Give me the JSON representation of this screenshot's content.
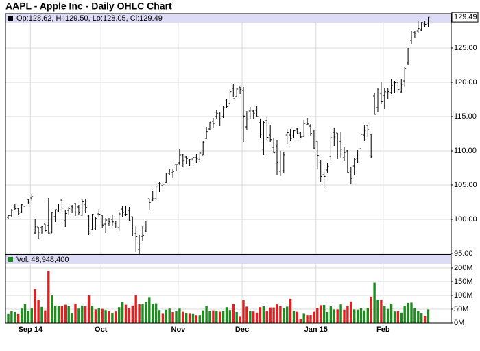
{
  "chart_data": {
    "type": "ohlc",
    "title": "AAPL - Apple Inc - Daily OHLC Chart",
    "legend_text": "Op:128.62, Hi:129.50, Lo:128.05, Cl:129.49",
    "volume_legend": "Vol: 48,948,400",
    "categories": [
      null,
      null,
      null,
      null,
      null,
      null,
      null,
      "Sep 14",
      null,
      null,
      null,
      null,
      null,
      null,
      null,
      null,
      null,
      null,
      null,
      null,
      null,
      null,
      null,
      null,
      null,
      null,
      null,
      null,
      "Oct",
      null,
      null,
      null,
      null,
      null,
      null,
      null,
      null,
      null,
      null,
      null,
      null,
      null,
      null,
      null,
      null,
      null,
      null,
      null,
      null,
      null,
      null,
      "Nov",
      null,
      null,
      null,
      null,
      null,
      null,
      null,
      null,
      null,
      null,
      null,
      null,
      null,
      null,
      null,
      null,
      null,
      null,
      "Dec",
      null,
      null,
      null,
      null,
      null,
      null,
      null,
      null,
      null,
      null,
      null,
      null,
      null,
      null,
      null,
      null,
      null,
      null,
      null,
      null,
      null,
      "Jan 15",
      null,
      null,
      null,
      null,
      null,
      null,
      null,
      null,
      null,
      null,
      null,
      null,
      null,
      null,
      null,
      null,
      null,
      null,
      null,
      "Feb",
      null,
      null,
      null,
      null,
      null,
      null,
      null,
      null,
      null,
      null,
      null,
      null,
      null
    ],
    "open": [
      100.3,
      100.6,
      101.8,
      101.6,
      101.0,
      101.9,
      102.9,
      103.1,
      98.0,
      98.9,
      98.8,
      99.3,
      99.1,
      98.0,
      100.4,
      101.2,
      102.8,
      99.8,
      101.3,
      101.9,
      102.3,
      101.8,
      100.6,
      102.2,
      100.5,
      98.5,
      98.7,
      100.8,
      100.6,
      99.3,
      99.4,
      100.0,
      99.4,
      98.8,
      101.5,
      100.7,
      101.3,
      100.4,
      97.9,
      95.6,
      97.5,
      98.3,
      103.0,
      102.8,
      103.0,
      105.2,
      104.9,
      105.4,
      106.7,
      106.8,
      108.0,
      108.2,
      109.4,
      109.1,
      108.6,
      108.8,
      109.0,
      108.7,
      109.4,
      111.8,
      113.2,
      114.3,
      115.0,
      115.4,
      115.0,
      117.3,
      116.9,
      119.1,
      117.9,
      119.3,
      118.8,
      113.5,
      115.8,
      115.8,
      115.9,
      114.1,
      110.2,
      114.4,
      112.3,
      110.5,
      110.7,
      107.0,
      107.1,
      112.3,
      112.3,
      112.2,
      113.2,
      112.6,
      112.1,
      113.8,
      113.6,
      112.8,
      111.4,
      108.3,
      106.5,
      107.2,
      109.2,
      112.7,
      112.6,
      111.4,
      109.0,
      110.0,
      107.0,
      107.8,
      108.9,
      110.3,
      112.3,
      113.7,
      112.4,
      118.0,
      116.3,
      118.4,
      118.1,
      118.5,
      118.5,
      120.0,
      120.0,
      118.6,
      120.2,
      122.8,
      126.1,
      127.3,
      127.5,
      127.6,
      128.5,
      128.62
    ],
    "high": [
      100.7,
      101.5,
      102.2,
      101.7,
      102.2,
      102.8,
      102.9,
      103.7,
      100.1,
      98.9,
      99.0,
      99.3,
      103.1,
      101.1,
      101.4,
      102.2,
      103.0,
      101.3,
      101.8,
      102.1,
      102.4,
      102.1,
      102.9,
      102.9,
      100.7,
      100.8,
      100.4,
      101.5,
      100.7,
      100.2,
      100.2,
      100.6,
      99.7,
      101.1,
      102.0,
      102.0,
      101.8,
      100.4,
      99.0,
      97.7,
      99.0,
      99.8,
      103.0,
      104.1,
      105.0,
      105.5,
      105.5,
      106.7,
      107.4,
      107.3,
      108.0,
      110.3,
      109.5,
      109.3,
      108.8,
      109.3,
      109.5,
      109.8,
      111.4,
      113.5,
      114.2,
      114.8,
      116.0,
      115.7,
      116.6,
      117.6,
      118.8,
      119.8,
      119.1,
      119.3,
      119.3,
      115.8,
      116.4,
      116.0,
      116.5,
      114.6,
      114.3,
      114.9,
      113.8,
      111.9,
      111.6,
      110.0,
      109.8,
      113.2,
      113.2,
      113.0,
      113.3,
      112.7,
      114.5,
      114.8,
      113.9,
      113.1,
      111.4,
      108.7,
      107.4,
      108.2,
      112.2,
      113.3,
      112.6,
      112.8,
      110.5,
      110.1,
      107.6,
      108.9,
      110.1,
      112.5,
      113.8,
      113.8,
      112.5,
      118.4,
      119.2,
      120.0,
      119.2,
      119.1,
      120.5,
      120.2,
      120.3,
      120.5,
      122.2,
      125.0,
      127.5,
      127.5,
      128.9,
      128.8,
      129.0,
      129.5
    ],
    "low": [
      100.0,
      100.3,
      101.3,
      100.7,
      100.9,
      101.8,
      102.2,
      102.7,
      97.8,
      97.2,
      97.8,
      98.1,
      97.8,
      98.0,
      99.6,
      101.1,
      101.2,
      98.9,
      100.6,
      101.0,
      100.5,
      100.6,
      100.5,
      101.0,
      97.7,
      98.4,
      98.5,
      100.4,
      98.7,
      98.0,
      99.1,
      99.1,
      98.7,
      98.3,
      100.3,
      100.5,
      99.8,
      97.6,
      95.2,
      95.0,
      96.8,
      98.2,
      101.3,
      102.7,
      102.8,
      104.0,
      104.7,
      105.3,
      106.4,
      106.0,
      107.1,
      108.0,
      107.7,
      108.1,
      107.8,
      107.9,
      108.2,
      108.4,
      109.4,
      111.7,
      113.1,
      113.3,
      114.7,
      113.6,
      114.8,
      116.3,
      116.6,
      117.8,
      117.8,
      118.3,
      111.3,
      113.0,
      114.6,
      114.6,
      114.9,
      111.9,
      109.4,
      111.6,
      111.3,
      109.7,
      106.4,
      106.3,
      106.8,
      111.0,
      111.5,
      111.9,
      112.5,
      111.9,
      112.0,
      113.7,
      112.1,
      110.2,
      107.4,
      105.4,
      104.6,
      106.7,
      108.7,
      110.7,
      108.8,
      108.9,
      108.5,
      106.7,
      105.2,
      106.5,
      108.2,
      109.7,
      111.4,
      112.0,
      109.0,
      115.3,
      115.6,
      116.9,
      116.1,
      117.6,
      118.3,
      118.5,
      118.5,
      118.5,
      119.3,
      122.5,
      125.6,
      126.4,
      127.2,
      127.5,
      128.0,
      128.05
    ],
    "close": [
      100.58,
      101.32,
      101.54,
      100.89,
      102.13,
      102.25,
      102.5,
      103.3,
      98.94,
      98.12,
      98.97,
      98.36,
      97.99,
      101.0,
      101.43,
      101.66,
      101.63,
      100.86,
      101.58,
      101.79,
      100.96,
      101.06,
      102.64,
      101.75,
      97.87,
      100.75,
      100.11,
      100.75,
      99.18,
      99.9,
      99.62,
      99.62,
      98.75,
      100.8,
      101.02,
      100.73,
      99.81,
      98.75,
      97.54,
      96.26,
      97.67,
      99.76,
      102.47,
      102.99,
      104.83,
      105.22,
      105.11,
      106.74,
      107.34,
      106.98,
      108.0,
      109.4,
      108.6,
      108.86,
      108.7,
      109.01,
      108.83,
      109.7,
      111.25,
      112.82,
      114.18,
      113.99,
      115.47,
      114.67,
      116.31,
      116.47,
      118.63,
      117.6,
      119.0,
      118.93,
      115.07,
      114.63,
      115.93,
      115.49,
      115.0,
      112.4,
      114.12,
      111.95,
      111.62,
      109.73,
      108.23,
      106.75,
      109.41,
      112.65,
      111.78,
      112.94,
      112.54,
      112.01,
      113.99,
      113.91,
      112.52,
      110.38,
      109.33,
      106.25,
      106.26,
      107.75,
      111.89,
      112.01,
      109.25,
      110.22,
      109.8,
      106.82,
      105.99,
      108.72,
      109.55,
      112.4,
      112.98,
      113.1,
      109.14,
      115.31,
      118.9,
      117.16,
      118.63,
      118.65,
      119.56,
      119.94,
      118.93,
      119.72,
      122.02,
      124.88,
      126.46,
      127.08,
      127.83,
      128.72,
      128.45,
      129.49
    ],
    "volume": [
      33,
      44,
      40,
      33,
      52,
      68,
      44,
      53,
      125,
      85,
      58,
      46,
      189,
      100,
      62,
      62,
      61,
      66,
      60,
      37,
      70,
      52,
      63,
      60,
      100,
      62,
      49,
      55,
      51,
      47,
      43,
      37,
      42,
      57,
      77,
      66,
      53,
      63,
      100,
      68,
      68,
      77,
      94,
      68,
      71,
      47,
      34,
      48,
      52,
      40,
      44,
      52,
      41,
      37,
      34,
      33,
      27,
      27,
      46,
      61,
      44,
      46,
      44,
      41,
      43,
      57,
      47,
      68,
      40,
      24,
      83,
      59,
      43,
      42,
      38,
      57,
      60,
      44,
      56,
      56,
      67,
      60,
      53,
      59,
      88,
      45,
      41,
      15,
      34,
      27,
      29,
      41,
      53,
      64,
      65,
      40,
      60,
      49,
      49,
      67,
      48,
      60,
      78,
      49,
      48,
      53,
      46,
      55,
      95,
      146,
      84,
      83,
      62,
      51,
      70,
      42,
      43,
      38,
      62,
      73,
      74,
      54,
      44,
      37,
      25,
      48.9484
    ],
    "ylim": [
      95,
      130
    ],
    "yticks": [
      {
        "value": 95,
        "label": "95.00"
      },
      {
        "value": 100,
        "label": "100.00"
      },
      {
        "value": 105,
        "label": "105.00"
      },
      {
        "value": 110,
        "label": "110.00"
      },
      {
        "value": 115,
        "label": "115.00"
      },
      {
        "value": 120,
        "label": "120.00"
      },
      {
        "value": 125,
        "label": "125.00"
      }
    ],
    "volume_ylim": [
      0,
      247.5
    ],
    "volume_yticks": [
      {
        "value": 0,
        "label": "0M"
      },
      {
        "value": 50,
        "label": "50M"
      },
      {
        "value": 100,
        "label": "100M"
      },
      {
        "value": 150,
        "label": "150M"
      },
      {
        "value": 200,
        "label": "200M"
      }
    ],
    "grid": true,
    "bar_color": "#000000",
    "up_color": "#1e8c1e",
    "down_color": "#e02020"
  }
}
